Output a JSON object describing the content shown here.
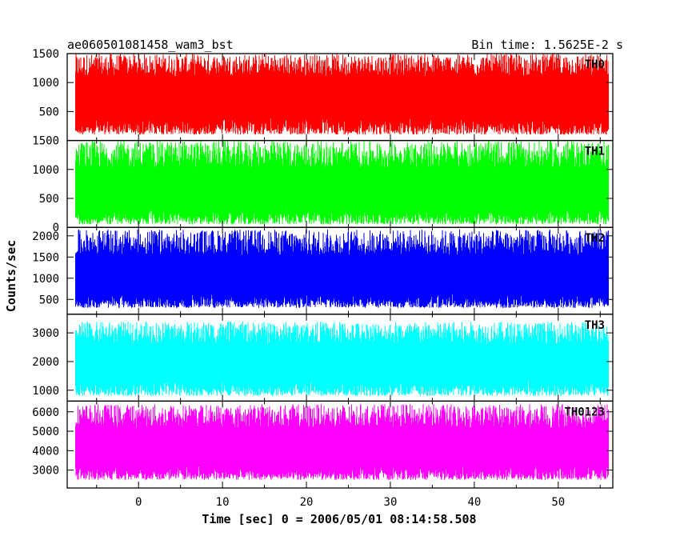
{
  "header": {
    "left_title": "ae060501081458_wam3_bst",
    "right_title": "Bin time: 1.5625E-2 s"
  },
  "chart_data": {
    "type": "line",
    "title": "ae060501081458_wam3_bst",
    "subtitle": "Bin time: 1.5625E-2 s",
    "xlabel": "Time [sec] 0 = 2006/05/01 08:14:58.508",
    "ylabel": "Counts/sec",
    "xlim": [
      -8.5,
      56.5
    ],
    "x_range_data": [
      -7.5,
      56
    ],
    "x_ticks": [
      0,
      10,
      20,
      30,
      40,
      50
    ],
    "x_tick_labels": [
      "0",
      "10",
      "20",
      "30",
      "40",
      "50"
    ],
    "grid": false,
    "panels": [
      {
        "name": "TH0",
        "color": "#ff0000",
        "ylim": [
          0,
          1500
        ],
        "y_ticks": [
          500,
          1000,
          1500
        ],
        "y_tick_labels": [
          "500",
          "1000",
          "1500"
        ],
        "series_range": [
          100,
          1500
        ],
        "mean": 800
      },
      {
        "name": "TH1",
        "color": "#00ff00",
        "ylim": [
          0,
          1500
        ],
        "y_ticks": [
          0,
          500,
          1000,
          1500
        ],
        "y_tick_labels": [
          "0",
          "500",
          "1000",
          "1500"
        ],
        "series_range": [
          50,
          1500
        ],
        "mean": 650
      },
      {
        "name": "TH2",
        "color": "#0000ff",
        "ylim": [
          150,
          2200
        ],
        "y_ticks": [
          500,
          1000,
          1500,
          2000
        ],
        "y_tick_labels": [
          "500",
          "1000",
          "1500",
          "2000"
        ],
        "series_range": [
          300,
          2150
        ],
        "mean": 1050
      },
      {
        "name": "TH3",
        "color": "#00ffff",
        "ylim": [
          620,
          3650
        ],
        "y_ticks": [
          1000,
          2000,
          3000
        ],
        "y_tick_labels": [
          "1000",
          "2000",
          "3000"
        ],
        "series_range": [
          800,
          3400
        ],
        "mean": 2000
      },
      {
        "name": "TH0123",
        "color": "#ff00ff",
        "ylim": [
          2080,
          6550
        ],
        "y_ticks": [
          3000,
          4000,
          5000,
          6000
        ],
        "y_tick_labels": [
          "3000",
          "4000",
          "5000",
          "6000"
        ],
        "series_range": [
          2500,
          6400
        ],
        "mean": 4200
      }
    ]
  }
}
